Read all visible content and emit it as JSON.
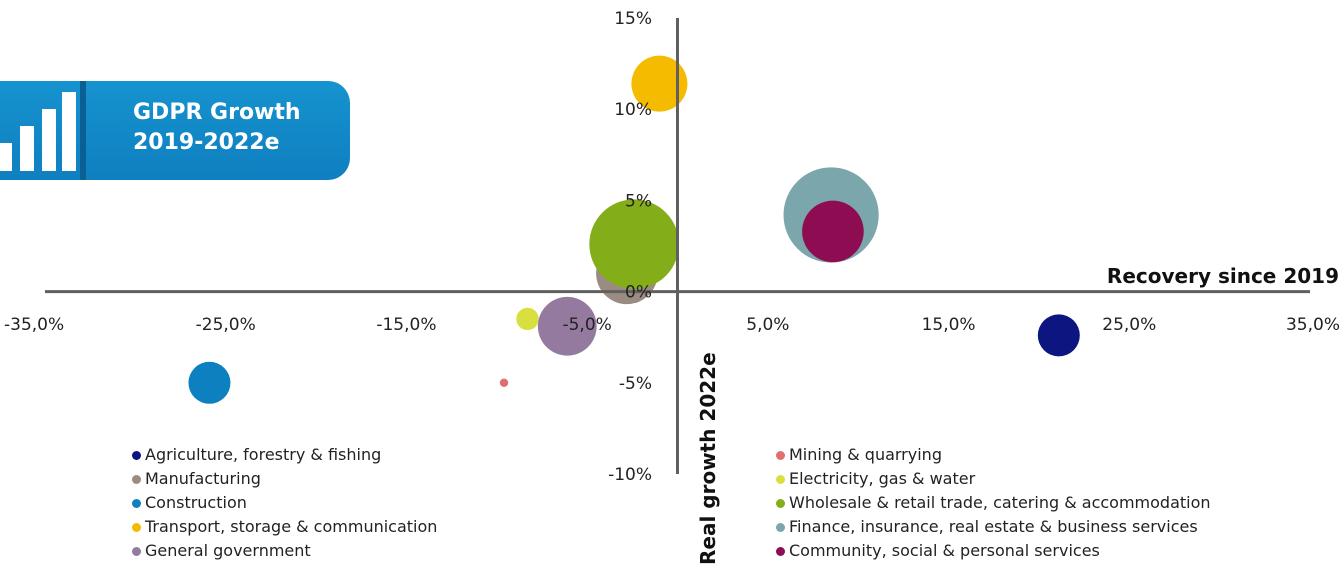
{
  "banner": {
    "title_line1": "GDPR Growth",
    "title_line2": "2019-2022e"
  },
  "chart_data": {
    "type": "bubble",
    "xlabel": "Recovery since 2019",
    "ylabel": "Real growth 2022e",
    "xlim": [
      -35,
      35
    ],
    "ylim": [
      -10,
      15
    ],
    "x_ticks": [
      "-35,0%",
      "-25,0%",
      "-15,0%",
      "-5,0%",
      "5,0%",
      "15,0%",
      "25,0%",
      "35,0%"
    ],
    "y_ticks": [
      "15%",
      "10%",
      "5%",
      "0%",
      "-5%",
      "-10%"
    ],
    "legend_left": [
      0,
      2,
      4,
      6,
      8
    ],
    "legend_right": [
      1,
      3,
      5,
      7,
      9
    ],
    "series": [
      {
        "name": "Agriculture, forestry & fishing",
        "x": 21.1,
        "y": -2.4,
        "size": 1.5,
        "color": "#0d1580"
      },
      {
        "name": "Mining & quarrying",
        "x": -9.6,
        "y": -5.0,
        "size": 0.3,
        "color": "#e07070"
      },
      {
        "name": "Manufacturing",
        "x": -2.8,
        "y": 1.0,
        "size": 2.2,
        "color": "#9a8c82"
      },
      {
        "name": "Electricity, gas & water",
        "x": -8.3,
        "y": -1.5,
        "size": 0.8,
        "color": "#d8e040"
      },
      {
        "name": "Construction",
        "x": -25.9,
        "y": -5.0,
        "size": 1.5,
        "color": "#0d80c0"
      },
      {
        "name": "Wholesale & retail trade, catering & accommodation",
        "x": -2.4,
        "y": 2.6,
        "size": 3.2,
        "color": "#84ad1a"
      },
      {
        "name": "Transport, storage & communication",
        "x": -1.0,
        "y": 11.4,
        "size": 2.0,
        "color": "#f5bb00"
      },
      {
        "name": "Finance, insurance, real estate & business services",
        "x": 8.5,
        "y": 4.2,
        "size": 3.4,
        "color": "#7ba6ab"
      },
      {
        "name": "General government",
        "x": -6.1,
        "y": -1.9,
        "size": 2.1,
        "color": "#957aa0"
      },
      {
        "name": "Community, social & personal services",
        "x": 8.6,
        "y": 3.3,
        "size": 2.2,
        "color": "#8e0c52"
      }
    ]
  }
}
